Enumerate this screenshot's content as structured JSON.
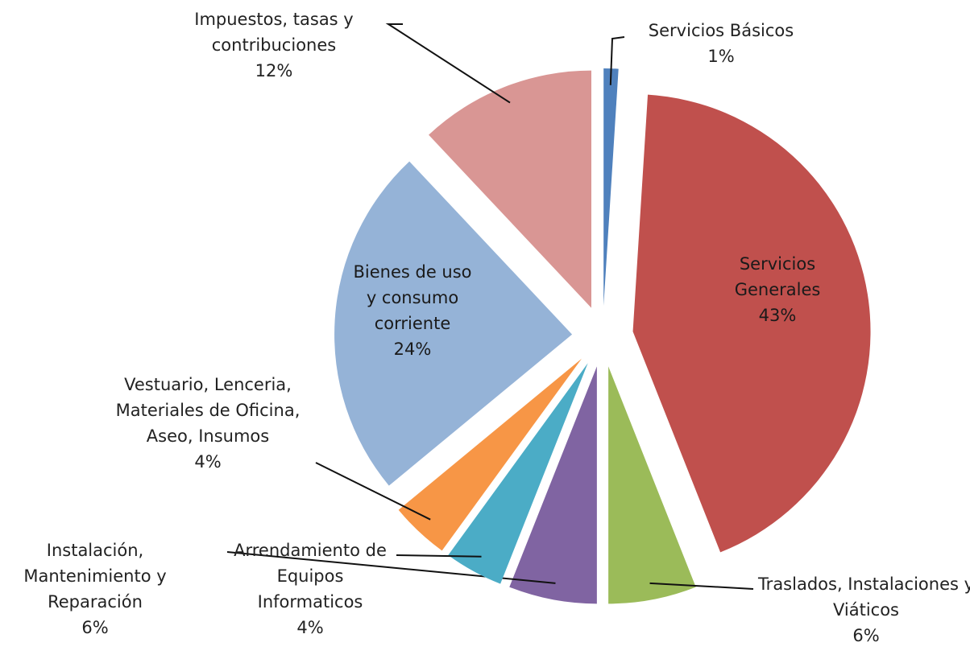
{
  "chart_data": {
    "type": "pie",
    "categories": [
      "Servicios Básicos",
      "Servicios Generales",
      "Traslados, Instalaciones y Viáticos",
      "Instalación, Mantenimiento y Reparación",
      "Arrendamiento de Equipos Informaticos",
      "Vestuario, Lenceria, Materiales de Oficina, Aseo, Insumos",
      "Bienes de uso y consumo corriente",
      "Impuestos, tasas y contribuciones"
    ],
    "values": [
      1,
      43,
      6,
      6,
      4,
      4,
      24,
      12
    ],
    "value_labels": [
      "1%",
      "43%",
      "6%",
      "6%",
      "4%",
      "4%",
      "24%",
      "12%"
    ],
    "colors": [
      "#4f81bd",
      "#c0504d",
      "#9bbb59",
      "#8064a2",
      "#4bacc6",
      "#f79646",
      "#95b3d7",
      "#d99694"
    ],
    "exploded": true
  }
}
